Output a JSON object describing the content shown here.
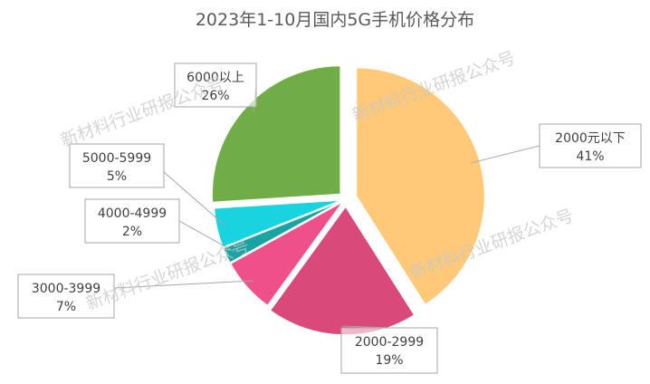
{
  "chart_data": {
    "type": "pie",
    "title": "2023年1-10月国内5G手机价格分布",
    "categories": [
      "2000元以下",
      "2000-2999",
      "3000-3999",
      "4000-4999",
      "5000-5999",
      "6000以上"
    ],
    "values": [
      41,
      19,
      7,
      2,
      5,
      26
    ],
    "value_labels": [
      "41%",
      "19%",
      "7%",
      "2%",
      "5%",
      "26%"
    ],
    "colors": [
      "#FFC977",
      "#D9497A",
      "#F0508A",
      "#1AA3A3",
      "#17D4DE",
      "#70AD47"
    ],
    "exploded": true,
    "legend": "none"
  },
  "watermark": "新材料行业研报公众号"
}
